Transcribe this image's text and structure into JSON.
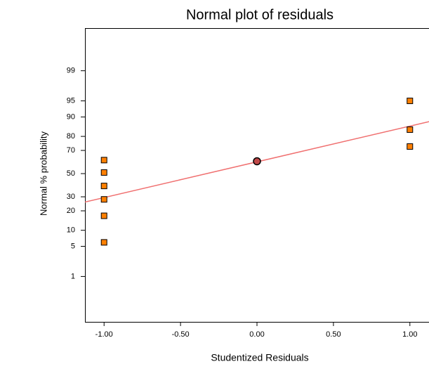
{
  "chart_data": {
    "type": "scatter",
    "title": "Normal plot of residuals",
    "x_label": "Studentized Residuals",
    "y_label": "Normal % probability",
    "y_scale": "probit",
    "xlim": [
      -1.125,
      1.125
    ],
    "xticks": [
      {
        "value": -1,
        "label": "-1.00"
      },
      {
        "value": -0.5,
        "label": "-0.50"
      },
      {
        "value": 0,
        "label": "0.00"
      },
      {
        "value": 0.5,
        "label": "0.50"
      },
      {
        "value": 1,
        "label": "1.00"
      }
    ],
    "ylim": [
      0.04,
      99.95
    ],
    "yticks": [
      1,
      5,
      10,
      20,
      30,
      50,
      70,
      80,
      90,
      95,
      99
    ],
    "series": [
      {
        "marker": "square",
        "color": "#ff8000",
        "x": [
          -1,
          -1,
          -1,
          -1,
          -1,
          -1,
          1,
          1,
          1
        ],
        "values": [
          6,
          17,
          28,
          39,
          51,
          62,
          73,
          84,
          95
        ]
      },
      {
        "marker": "circle",
        "color": "#c04848",
        "x": [
          0
        ],
        "values": [
          61
        ]
      },
      {
        "marker": "line",
        "color": "#f07070",
        "x": [
          -1.125,
          1.125
        ],
        "values": [
          26,
          88
        ]
      }
    ]
  }
}
